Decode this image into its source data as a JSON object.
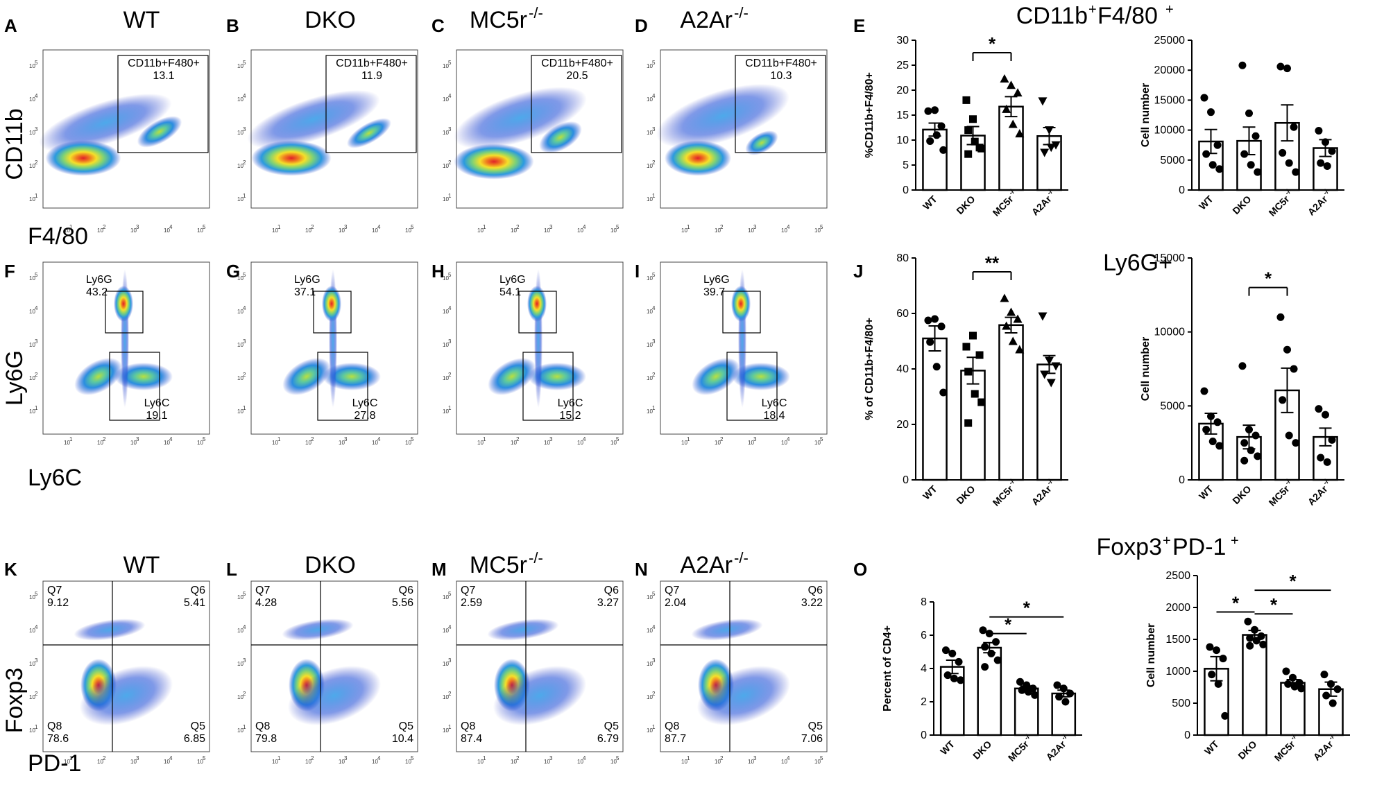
{
  "rows": [
    {
      "flow": [
        {
          "label": "A",
          "title": "WT",
          "gate": "CD11b+F480+",
          "value": "13.1",
          "x_axis_label": "F4/80",
          "y_axis_label": "CD11b"
        },
        {
          "label": "B",
          "title": "DKO",
          "gate": "CD11b+F480+",
          "value": "11.9"
        },
        {
          "label": "C",
          "title": "MC5r",
          "title_sup": "-/-",
          "gate": "CD11b+F480+",
          "value": "20.5"
        },
        {
          "label": "D",
          "title": "A2Ar",
          "title_sup": "-/-",
          "gate": "CD11b+F480+",
          "value": "10.3"
        }
      ],
      "panel_label": "E",
      "section_title": "CD11b",
      "section_title_sup1": "+",
      "section_title_mid": "F4/80",
      "section_title_sup2": "+"
    },
    {
      "flow": [
        {
          "label": "F",
          "gate_top": "Ly6G",
          "value_top": "43.2",
          "gate_bottom": "Ly6C",
          "value_bottom": "19.1",
          "x_axis_label": "Ly6C",
          "y_axis_label": "Ly6G"
        },
        {
          "label": "G",
          "gate_top": "Ly6G",
          "value_top": "37.1",
          "gate_bottom": "Ly6C",
          "value_bottom": "27.8"
        },
        {
          "label": "H",
          "gate_top": "Ly6G",
          "value_top": "54.1",
          "gate_bottom": "Ly6C",
          "value_bottom": "15.2"
        },
        {
          "label": "I",
          "gate_top": "Ly6G",
          "value_top": "39.7",
          "gate_bottom": "Ly6C",
          "value_bottom": "18.4"
        }
      ],
      "panel_label": "J",
      "section_title": "Ly6G+"
    },
    {
      "flow": [
        {
          "label": "K",
          "title": "WT",
          "q7": "Q7",
          "q7v": "9.12",
          "q6": "Q6",
          "q6v": "5.41",
          "q8": "Q8",
          "q8v": "78.6",
          "q5": "Q5",
          "q5v": "6.85",
          "x_axis_label": "PD-1",
          "y_axis_label": "Foxp3"
        },
        {
          "label": "L",
          "title": "DKO",
          "q7": "Q7",
          "q7v": "4.28",
          "q6": "Q6",
          "q6v": "5.56",
          "q8": "Q8",
          "q8v": "79.8",
          "q5": "Q5",
          "q5v": "10.4"
        },
        {
          "label": "M",
          "title": "MC5r",
          "title_sup": "-/-",
          "q7": "Q7",
          "q7v": "2.59",
          "q6": "Q6",
          "q6v": "3.27",
          "q8": "Q8",
          "q8v": "87.4",
          "q5": "Q5",
          "q5v": "6.79"
        },
        {
          "label": "N",
          "title": "A2Ar",
          "title_sup": "-/-",
          "q7": "Q7",
          "q7v": "2.04",
          "q6": "Q6",
          "q6v": "3.22",
          "q8": "Q8",
          "q8v": "87.7",
          "q5": "Q5",
          "q5v": "7.06"
        }
      ],
      "panel_label": "O",
      "section_title": "Foxp3",
      "section_title_sup1": "+",
      "section_title_mid": "PD-1",
      "section_title_sup2": "+"
    }
  ],
  "flow_axis_ticks": [
    "10",
    "10",
    "10",
    "10",
    "10"
  ],
  "flow_axis_tick_exps": [
    "1",
    "2",
    "3",
    "4",
    "5"
  ],
  "chart_data": [
    {
      "id": "E1",
      "type": "bar",
      "title": "CD11b+F4/80+",
      "ylabel": "%CD11b+F4/80+",
      "ylim": [
        0,
        30
      ],
      "yticks": [
        0,
        5,
        10,
        15,
        20,
        25,
        30
      ],
      "categories": [
        "WT",
        "DKO",
        "MC5r",
        "A2Ar"
      ],
      "category_sups": [
        "",
        "",
        "-/-",
        "-/-"
      ],
      "values": [
        12.1,
        10.9,
        16.7,
        10.8
      ],
      "errors": [
        1.3,
        1.8,
        2.0,
        1.7
      ],
      "points": [
        [
          15.8,
          16.0,
          12.8,
          9.8,
          11.0,
          8.0
        ],
        [
          18.0,
          14.2,
          8.5,
          12.0,
          9.7,
          8.3,
          7.2
        ],
        [
          22.3,
          21.0,
          19.5,
          16.2,
          13.2,
          11.3
        ],
        [
          17.8,
          12.0,
          9.0,
          7.5,
          8.5
        ]
      ],
      "markers": [
        "circle",
        "square",
        "triangle",
        "triangle-down"
      ],
      "sig": [
        {
          "from": 1,
          "to": 2,
          "label": "*",
          "y": 27.5
        }
      ]
    },
    {
      "id": "E2",
      "type": "bar",
      "ylabel": "Cell number",
      "ylim": [
        0,
        25000
      ],
      "yticks": [
        0,
        5000,
        10000,
        15000,
        20000,
        25000
      ],
      "categories": [
        "WT",
        "DKO",
        "MC5r",
        "A2Ar"
      ],
      "category_sups": [
        "",
        "",
        "-/-",
        "-/-"
      ],
      "values": [
        8100,
        8200,
        11200,
        7000
      ],
      "errors": [
        2000,
        2300,
        3000,
        1400
      ],
      "points": [
        [
          15400,
          13000,
          7500,
          6000,
          4200,
          3500
        ],
        [
          20800,
          12800,
          9000,
          6000,
          4200,
          3000
        ],
        [
          20600,
          20300,
          10500,
          6200,
          4500,
          3000
        ],
        [
          9900,
          8000,
          6500,
          4500,
          4000
        ]
      ],
      "markers": [
        "circle",
        "circle",
        "circle",
        "circle"
      ],
      "sig": []
    },
    {
      "id": "J1",
      "type": "bar",
      "ylabel": "% of CD11b+F4/80+",
      "ylim": [
        0,
        80
      ],
      "yticks": [
        0,
        20,
        40,
        60,
        80
      ],
      "categories": [
        "WT",
        "DKO",
        "MC5r",
        "A2Ar"
      ],
      "category_sups": [
        "",
        "",
        "-/-",
        "-/-"
      ],
      "values": [
        51.0,
        39.4,
        55.8,
        41.6
      ],
      "errors": [
        4.5,
        4.8,
        2.8,
        3.2
      ],
      "points": [
        [
          57.5,
          58.0,
          55.3,
          49.7,
          40.8,
          31.5
        ],
        [
          48.0,
          52.0,
          45.0,
          39.0,
          31.0,
          28.0,
          20.5
        ],
        [
          65.5,
          60.5,
          58.0,
          55.5,
          50.0,
          47.0
        ],
        [
          59.0,
          43.0,
          41.0,
          38.0,
          35.0
        ]
      ],
      "markers": [
        "circle",
        "square",
        "triangle",
        "triangle-down"
      ],
      "sig": [
        {
          "from": 1,
          "to": 2,
          "label": "**",
          "y": 75
        }
      ]
    },
    {
      "id": "J2",
      "type": "bar",
      "ylabel": "Cell number",
      "ylim": [
        0,
        15000
      ],
      "yticks": [
        0,
        5000,
        10000,
        15000
      ],
      "categories": [
        "WT",
        "DKO",
        "MC5r",
        "A2Ar"
      ],
      "category_sups": [
        "",
        "",
        "-/-",
        "-/-"
      ],
      "values": [
        3800,
        2900,
        6050,
        2900
      ],
      "errors": [
        700,
        800,
        1500,
        600
      ],
      "points": [
        [
          6000,
          4300,
          3900,
          3400,
          2600,
          2300
        ],
        [
          7700,
          3400,
          3000,
          2500,
          2000,
          1600,
          1300
        ],
        [
          11000,
          8800,
          7500,
          5400,
          3000,
          2500
        ],
        [
          4800,
          4400,
          2700,
          1500,
          1200
        ]
      ],
      "markers": [
        "circle",
        "circle",
        "circle",
        "circle"
      ],
      "sig": [
        {
          "from": 1,
          "to": 2,
          "label": "*",
          "y": 13000
        }
      ]
    },
    {
      "id": "O1",
      "type": "bar",
      "ylabel": "Percent of CD4+",
      "ylim": [
        0,
        8
      ],
      "yticks": [
        0,
        2,
        4,
        6,
        8
      ],
      "categories": [
        "WT",
        "DKO",
        "MC5r",
        "A2Ar"
      ],
      "category_sups": [
        "",
        "",
        "-/-",
        "-/-"
      ],
      "values": [
        4.1,
        5.25,
        2.8,
        2.5
      ],
      "errors": [
        0.4,
        0.3,
        0.15,
        0.2
      ],
      "points": [
        [
          5.1,
          4.9,
          4.4,
          3.6,
          3.4,
          3.3
        ],
        [
          6.3,
          6.1,
          5.6,
          5.3,
          4.9,
          4.5,
          4.1
        ],
        [
          3.2,
          3.0,
          2.8,
          2.7,
          2.6,
          2.4
        ],
        [
          3.0,
          2.8,
          2.5,
          2.3,
          2.0
        ]
      ],
      "markers": [
        "circle",
        "circle",
        "circle",
        "circle"
      ],
      "sig": [
        {
          "from": 1,
          "to": 2,
          "label": "*",
          "y": 6.1
        },
        {
          "from": 1,
          "to": 3,
          "label": "*",
          "y": 7.1
        }
      ]
    },
    {
      "id": "O2",
      "type": "bar",
      "ylabel": "Cell number",
      "ylim": [
        0,
        2500
      ],
      "yticks": [
        0,
        500,
        1000,
        1500,
        2000,
        2500
      ],
      "categories": [
        "WT",
        "DKO",
        "MC5r",
        "A2Ar"
      ],
      "category_sups": [
        "",
        "",
        "-/-",
        "-/-"
      ],
      "values": [
        1040,
        1570,
        820,
        720
      ],
      "errors": [
        190,
        70,
        50,
        110
      ],
      "points": [
        [
          1380,
          1330,
          1200,
          950,
          800,
          300
        ],
        [
          1780,
          1650,
          1550,
          1520,
          1480,
          1420,
          1400
        ],
        [
          1000,
          900,
          820,
          800,
          760,
          730
        ],
        [
          950,
          800,
          720,
          620,
          500
        ]
      ],
      "markers": [
        "circle",
        "circle",
        "circle",
        "circle"
      ],
      "sig": [
        {
          "from": 0,
          "to": 1,
          "label": "*",
          "y": 1930
        },
        {
          "from": 1,
          "to": 2,
          "label": "*",
          "y": 1900
        },
        {
          "from": 1,
          "to": 3,
          "label": "*",
          "y": 2270
        }
      ]
    }
  ]
}
